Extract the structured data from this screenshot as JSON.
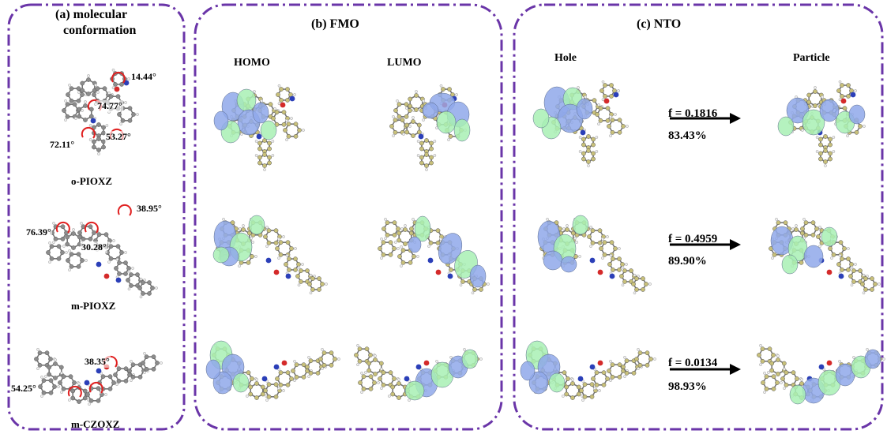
{
  "colors": {
    "frame": "#6a35a8",
    "lobe_blue": "#8fa8ea",
    "lobe_green": "#a8f0b4",
    "atom_carbon": "#c8c07a",
    "atom_gray": "#8c8c8c",
    "atom_nitrogen": "#2b3fb8",
    "atom_oxygen": "#d42a2a",
    "atom_hydrogen": "#f0f0f0",
    "rotation_arrow": "#e02020"
  },
  "panels": {
    "a": {
      "title_line1": "(a) molecular",
      "title_line2": "conformation"
    },
    "b": {
      "title": "(b) FMO",
      "col1": "HOMO",
      "col2": "LUMO"
    },
    "c": {
      "title": "(c) NTO",
      "col1": "Hole",
      "col2": "Particle"
    }
  },
  "molecules": [
    {
      "name": "o-PIOXZ",
      "angles": [
        "14.44°",
        "74.77°",
        "53.27°",
        "72.11°"
      ],
      "f": "f = 0.1816",
      "pct": "83.43%"
    },
    {
      "name": "m-PIOXZ",
      "angles": [
        "38.95°",
        "76.39°",
        "30.28°"
      ],
      "f": "f = 0.4959",
      "pct": "89.90%"
    },
    {
      "name": "m-CZOXZ",
      "angles": [
        "38.35°",
        "54.25°"
      ],
      "f": "f = 0.0134",
      "pct": "98.93%"
    }
  ]
}
